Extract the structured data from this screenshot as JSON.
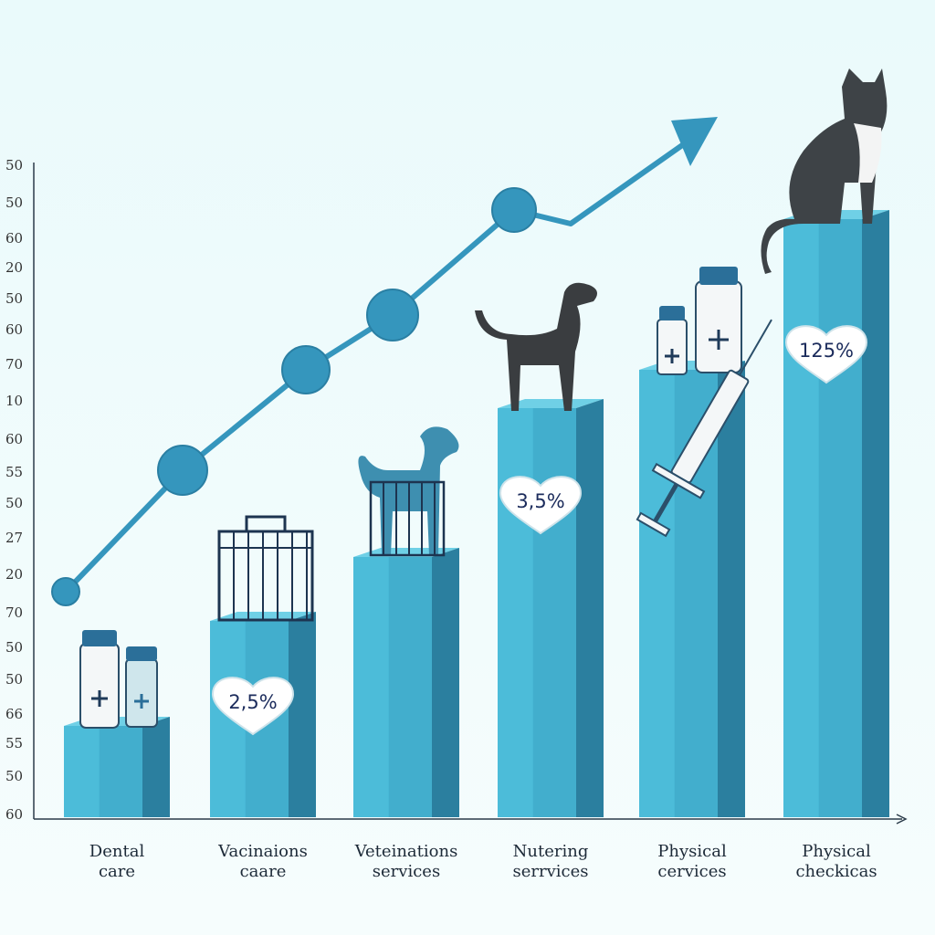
{
  "axis_labels": [
    "50",
    "50",
    "60",
    "20",
    "50",
    "60",
    "70",
    "10",
    "60",
    "55",
    "50",
    "27",
    "20",
    "70",
    "50",
    "50",
    "66",
    "55",
    "50",
    "60"
  ],
  "categories": [
    [
      "Dental",
      "care"
    ],
    [
      "Vacinaions",
      "caare"
    ],
    [
      "Veteinations",
      "services"
    ],
    [
      "Nutering",
      "serrvices"
    ],
    [
      "Physical",
      "cervices"
    ],
    [
      "Physical",
      "checkicas"
    ]
  ],
  "badges": [
    "2,5%",
    "3,5%",
    "125%"
  ]
}
